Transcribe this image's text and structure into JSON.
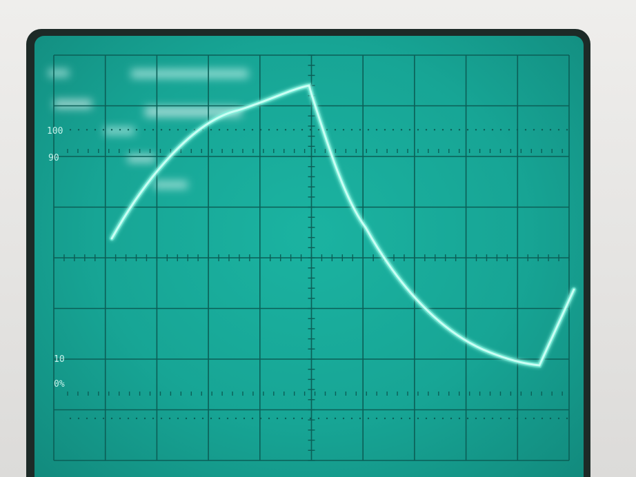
{
  "graticule": {
    "labels": {
      "pct_100": "100",
      "pct_90": "90",
      "pct_10": "10",
      "pct_0": "0%"
    }
  },
  "trace": {
    "color": "#c9fff4",
    "glow_color": "#6ff5de"
  },
  "screen": {
    "phosphor_color": "#17a595",
    "grid_color": "#0b5e56"
  }
}
